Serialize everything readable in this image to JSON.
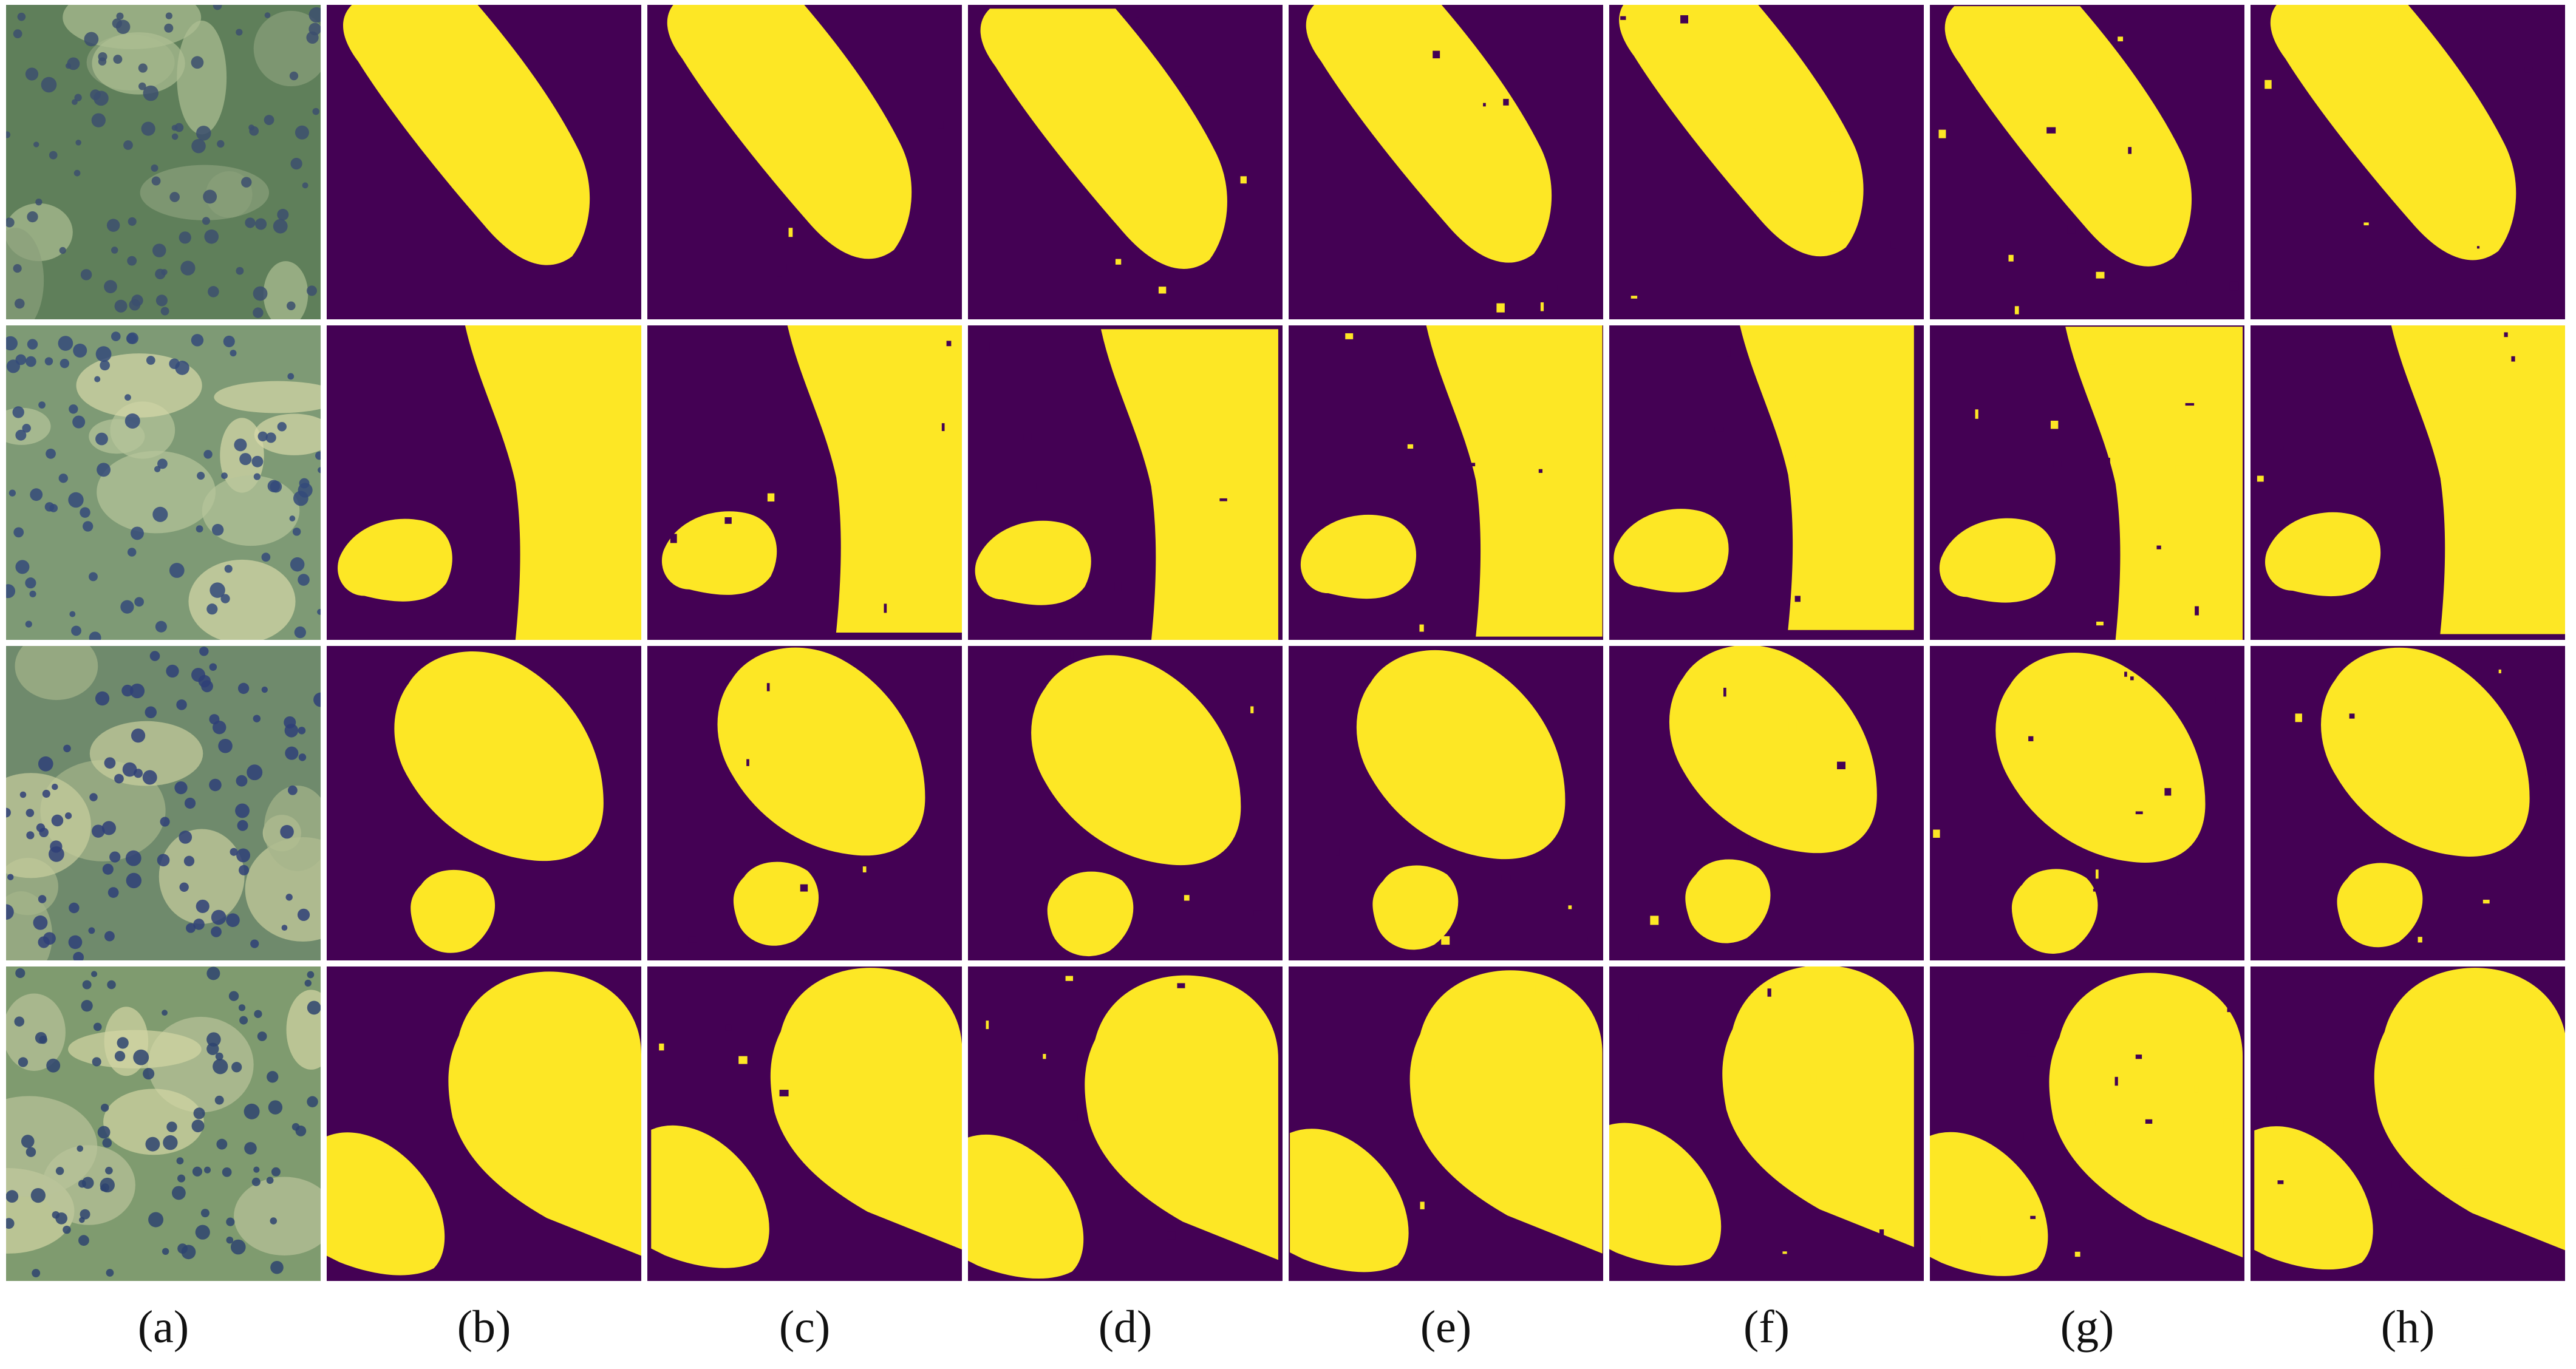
{
  "figure": {
    "captions": [
      "(a)",
      "(b)",
      "(c)",
      "(d)",
      "(e)",
      "(f)",
      "(g)",
      "(h)"
    ],
    "colors": {
      "background": "#440154",
      "foreground": "#FDE725",
      "separator": "#FFFFFF"
    },
    "rows": [
      {
        "row": 1,
        "columns": [
          "histology-image",
          "ground-truth-mask",
          "segmentation-mask",
          "segmentation-mask",
          "segmentation-mask",
          "segmentation-mask",
          "segmentation-mask",
          "segmentation-mask"
        ]
      },
      {
        "row": 2,
        "columns": [
          "histology-image",
          "ground-truth-mask",
          "segmentation-mask",
          "segmentation-mask",
          "segmentation-mask",
          "segmentation-mask",
          "segmentation-mask",
          "segmentation-mask"
        ]
      },
      {
        "row": 3,
        "columns": [
          "histology-image",
          "ground-truth-mask",
          "segmentation-mask",
          "segmentation-mask",
          "segmentation-mask",
          "segmentation-mask",
          "segmentation-mask",
          "segmentation-mask"
        ]
      },
      {
        "row": 4,
        "columns": [
          "histology-image",
          "ground-truth-mask",
          "segmentation-mask",
          "segmentation-mask",
          "segmentation-mask",
          "segmentation-mask",
          "segmentation-mask",
          "segmentation-mask"
        ]
      }
    ]
  }
}
